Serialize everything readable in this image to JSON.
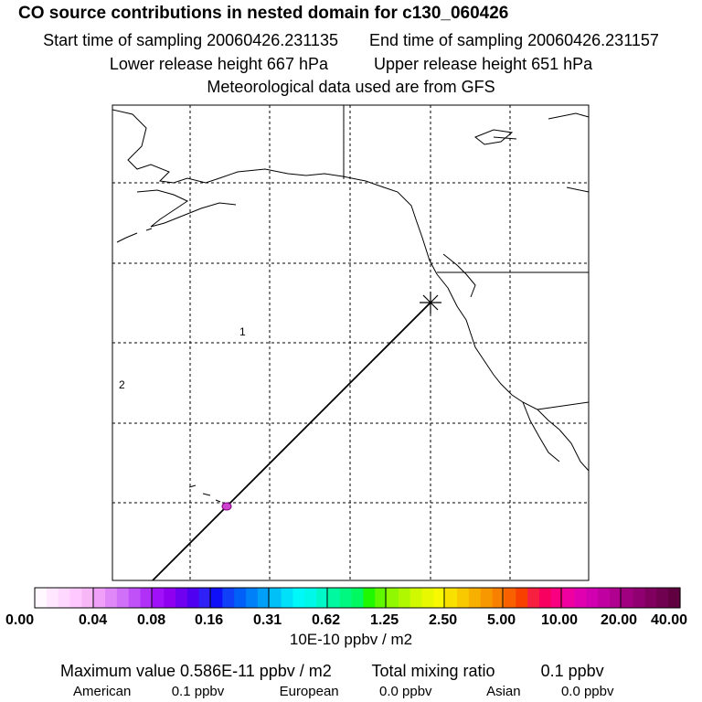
{
  "header": {
    "title": "CO  source contributions in nested domain for c130_060426",
    "start_label": "Start time of sampling 20060426.231135",
    "end_label": "End time of sampling 20060426.231157",
    "lower_label": "Lower release height  667 hPa",
    "upper_label": "Upper release height  651 hPa",
    "met_label": "Meteorological data used are from GFS"
  },
  "map": {
    "region_labels": [
      "1",
      "2"
    ],
    "colors": {
      "plume": "#cc44cc",
      "line": "#000000"
    }
  },
  "colorbar": {
    "tick_labels": [
      "0.00",
      "0.04",
      "0.08",
      "0.16",
      "0.31",
      "0.62",
      "1.25",
      "2.50",
      "5.00",
      "10.00",
      "20.00",
      "40.00"
    ],
    "units": "10E-10 ppbv / m2",
    "colors": [
      "#fff8ff",
      "#ffe8ff",
      "#ffd8ff",
      "#ffc8ff",
      "#f8b8f8",
      "#f0a0f8",
      "#e088f8",
      "#d070f8",
      "#c050f8",
      "#b030f8",
      "#a010f8",
      "#9000f0",
      "#7000f0",
      "#5000f0",
      "#3020f8",
      "#1010f8",
      "#1040f8",
      "#0060f8",
      "#0080f8",
      "#00a0f8",
      "#00c0f8",
      "#00e0f8",
      "#00f8f8",
      "#00f8e8",
      "#00f8c8",
      "#00f8a0",
      "#00f880",
      "#00f860",
      "#20f800",
      "#60f800",
      "#90f800",
      "#b0f800",
      "#d0f800",
      "#e8f800",
      "#f8f800",
      "#f8e000",
      "#f8c800",
      "#f8b000",
      "#f89800",
      "#f88000",
      "#f86000",
      "#f84000",
      "#f82040",
      "#f80060",
      "#f80080",
      "#f000a0",
      "#e000b0",
      "#d000b0",
      "#c000a0",
      "#b00090",
      "#a00080",
      "#900070",
      "#800060",
      "#700050",
      "#600040"
    ]
  },
  "summary": {
    "max_label": "Maximum value  0.586E-11 ppbv / m2",
    "total_label": "Total mixing ratio",
    "total_value": "0.1 ppbv",
    "american_label": "American",
    "american_value": "0.1 ppbv",
    "european_label": "European",
    "european_value": "0.0 ppbv",
    "asian_label": "Asian",
    "asian_value": "0.0 ppbv"
  }
}
